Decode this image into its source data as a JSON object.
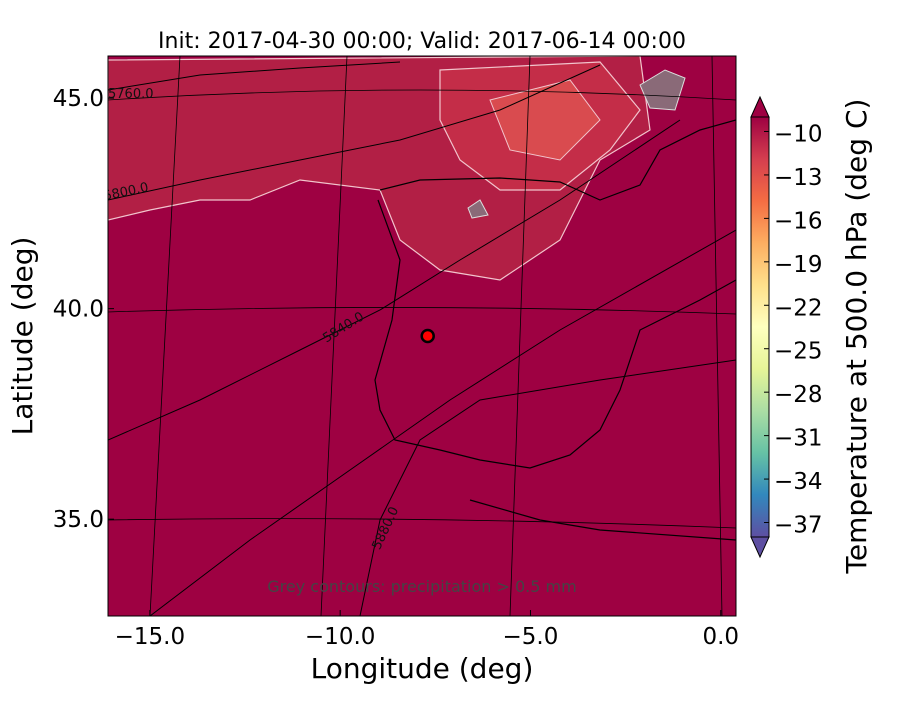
{
  "chart_data": {
    "type": "map",
    "title": "Init: 2017-04-30 00:00; Valid: 2017-06-14 00:00",
    "x_label": "Longitude (deg)",
    "y_label": "Latitude (deg)",
    "xlim": [
      -16.1,
      0.4
    ],
    "xticks": [
      {
        "value": -15,
        "label": "−15.0"
      },
      {
        "value": -10,
        "label": "−10.0"
      },
      {
        "value": -5,
        "label": "−5.0"
      },
      {
        "value": 0,
        "label": "0.0"
      }
    ],
    "ylim": [
      32.7,
      46.0
    ],
    "yticks": [
      {
        "value": 35,
        "label": "35.0"
      },
      {
        "value": 40,
        "label": "40.0"
      },
      {
        "value": 45,
        "label": "45.0"
      }
    ],
    "colorbar_label": "Temperature at 500.0 hPa (deg C)",
    "colorbar_lim": [
      -38,
      -9
    ],
    "colorbar_ticks": [
      {
        "value": -10,
        "label": "−10"
      },
      {
        "value": -13,
        "label": "−13"
      },
      {
        "value": -16,
        "label": "−16"
      },
      {
        "value": -19,
        "label": "−19"
      },
      {
        "value": -22,
        "label": "−22"
      },
      {
        "value": -25,
        "label": "−25"
      },
      {
        "value": -28,
        "label": "−28"
      },
      {
        "value": -31,
        "label": "−31"
      },
      {
        "value": -34,
        "label": "−34"
      },
      {
        "value": -37,
        "label": "−37"
      }
    ],
    "colorbar_colors": [
      "#5e4fa2",
      "#3288bd",
      "#66c2a5",
      "#abdda4",
      "#e6f598",
      "#ffffbf",
      "#fee08b",
      "#fdae61",
      "#f46d43",
      "#d53e4f",
      "#9e0142"
    ],
    "field_color": "#9e0142",
    "marker": {
      "lon": -7.7,
      "lat": 39.35,
      "color": "#ff0000"
    },
    "annotation": "Grey contours: precipitation > 0.5 mm",
    "contour_labels": [
      "5760.0",
      "5800.0",
      "5840.0",
      "5880.0"
    ]
  }
}
